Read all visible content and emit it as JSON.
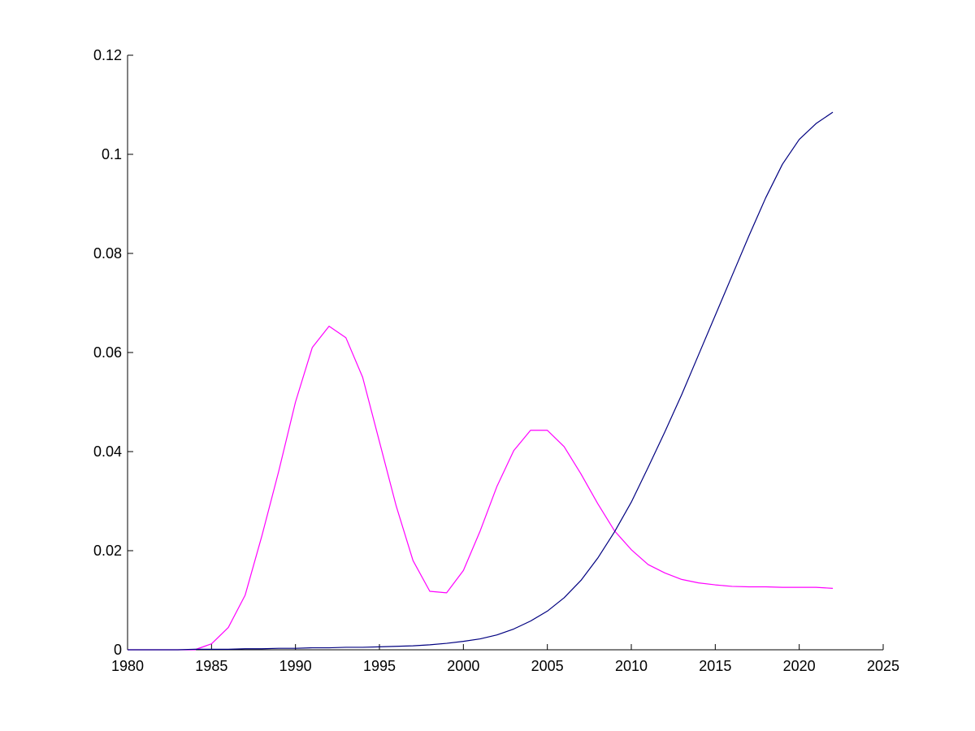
{
  "chart_data": {
    "type": "line",
    "title": "",
    "xlabel": "",
    "ylabel": "",
    "xlim": [
      1980,
      2025
    ],
    "ylim": [
      0,
      0.12
    ],
    "grid": false,
    "legend": "none",
    "x_ticks": [
      1980,
      1985,
      1990,
      1995,
      2000,
      2005,
      2010,
      2015,
      2020,
      2025
    ],
    "y_ticks": [
      0,
      0.02,
      0.04,
      0.06,
      0.08,
      0.1,
      0.12
    ],
    "x_tick_labels": [
      "1980",
      "1985",
      "1990",
      "1995",
      "2000",
      "2005",
      "2010",
      "2015",
      "2020",
      "2025"
    ],
    "y_tick_labels": [
      "0",
      "0.02",
      "0.04",
      "0.06",
      "0.08",
      "0.1",
      "0.12"
    ],
    "x": [
      1980,
      1981,
      1982,
      1983,
      1984,
      1985,
      1986,
      1987,
      1988,
      1989,
      1990,
      1991,
      1992,
      1993,
      1994,
      1995,
      1996,
      1997,
      1998,
      1999,
      2000,
      2001,
      2002,
      2003,
      2004,
      2005,
      2006,
      2007,
      2008,
      2009,
      2010,
      2011,
      2012,
      2013,
      2014,
      2015,
      2016,
      2017,
      2018,
      2019,
      2020,
      2021,
      2022
    ],
    "series": [
      {
        "color": "#ff00ff",
        "values": [
          0,
          0,
          0,
          0,
          0,
          0.0012,
          0.0045,
          0.011,
          0.023,
          0.036,
          0.05,
          0.061,
          0.0653,
          0.063,
          0.055,
          0.042,
          0.029,
          0.018,
          0.0118,
          0.0115,
          0.016,
          0.024,
          0.033,
          0.0402,
          0.0443,
          0.0443,
          0.041,
          0.0355,
          0.0295,
          0.024,
          0.0202,
          0.0172,
          0.0155,
          0.0142,
          0.0135,
          0.0131,
          0.0128,
          0.0127,
          0.0127,
          0.0126,
          0.0126,
          0.0126,
          0.0124
        ]
      },
      {
        "color": "#000080",
        "values": [
          0,
          0,
          0,
          0,
          0.0001,
          0.0001,
          0.0001,
          0.0002,
          0.0002,
          0.0003,
          0.0003,
          0.0004,
          0.0004,
          0.0005,
          0.0005,
          0.0006,
          0.0007,
          0.0008,
          0.001,
          0.0013,
          0.0017,
          0.0022,
          0.003,
          0.0042,
          0.0058,
          0.0078,
          0.0105,
          0.014,
          0.0185,
          0.0238,
          0.0298,
          0.0368,
          0.044,
          0.0515,
          0.0595,
          0.0675,
          0.0755,
          0.0835,
          0.0912,
          0.098,
          0.103,
          0.1062,
          0.1085
        ]
      }
    ]
  }
}
